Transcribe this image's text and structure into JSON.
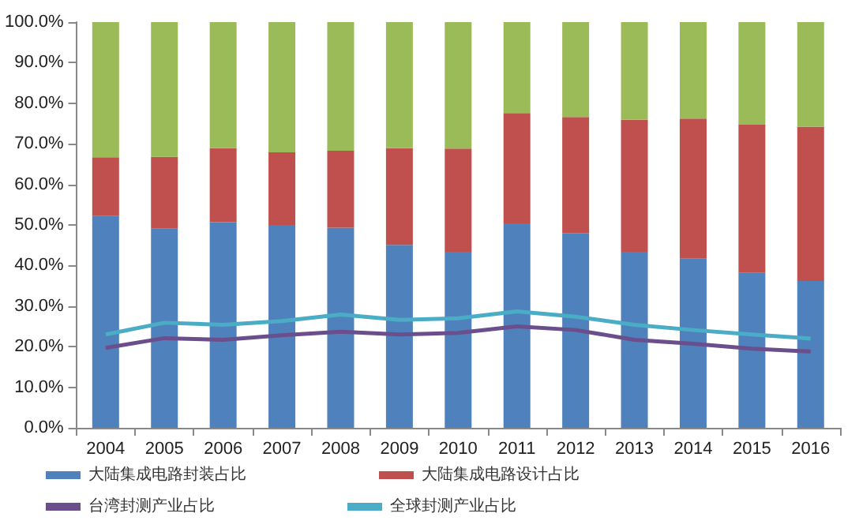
{
  "chart_data": {
    "type": "bar",
    "stacked": true,
    "categories": [
      "2004",
      "2005",
      "2006",
      "2007",
      "2008",
      "2009",
      "2010",
      "2011",
      "2012",
      "2013",
      "2014",
      "2015",
      "2016"
    ],
    "series": [
      {
        "name": "大陆集成电路封装占比",
        "color": "#4f81bd",
        "values": [
          52.2,
          49.1,
          50.7,
          50.0,
          49.3,
          45.1,
          43.4,
          50.4,
          48.0,
          43.4,
          41.7,
          38.2,
          36.2
        ]
      },
      {
        "name": "大陆集成电路设计占比",
        "color": "#c0504d",
        "values": [
          14.5,
          17.7,
          18.2,
          17.9,
          19.0,
          23.8,
          25.4,
          27.2,
          28.6,
          32.5,
          34.5,
          36.5,
          38.0
        ]
      },
      {
        "color": "#9bbb59",
        "values": [
          33.3,
          33.2,
          31.1,
          32.1,
          31.7,
          31.1,
          31.2,
          22.4,
          23.4,
          24.1,
          23.8,
          25.3,
          25.8
        ]
      },
      {
        "name": "台湾封测产业占比",
        "type": "line",
        "color": "#6a4f8c",
        "values": [
          19.7,
          22.1,
          21.7,
          22.8,
          23.7,
          23.0,
          23.4,
          25.0,
          24.1,
          21.7,
          20.7,
          19.5,
          18.8
        ]
      },
      {
        "name": "全球封测产业占比",
        "type": "line",
        "color": "#4bacc6",
        "values": [
          23.0,
          25.9,
          25.4,
          26.3,
          27.9,
          26.6,
          27.0,
          28.7,
          27.4,
          25.4,
          24.1,
          23.0,
          22.0
        ]
      }
    ],
    "ylim": [
      0,
      100
    ],
    "yticks": [
      {
        "value": 0,
        "label": "0.0%"
      },
      {
        "value": 10,
        "label": "10.0%"
      },
      {
        "value": 20,
        "label": "20.0%"
      },
      {
        "value": 30,
        "label": "30.0%"
      },
      {
        "value": 40,
        "label": "40.0%"
      },
      {
        "value": 50,
        "label": "50.0%"
      },
      {
        "value": 60,
        "label": "60.0%"
      },
      {
        "value": 70,
        "label": "70.0%"
      },
      {
        "value": 80,
        "label": "80.0%"
      },
      {
        "value": 90,
        "label": "90.0%"
      },
      {
        "value": 100,
        "label": "100.0%"
      }
    ],
    "grid": false,
    "legend": "bottom",
    "marker": "none",
    "line_style": "solid"
  }
}
